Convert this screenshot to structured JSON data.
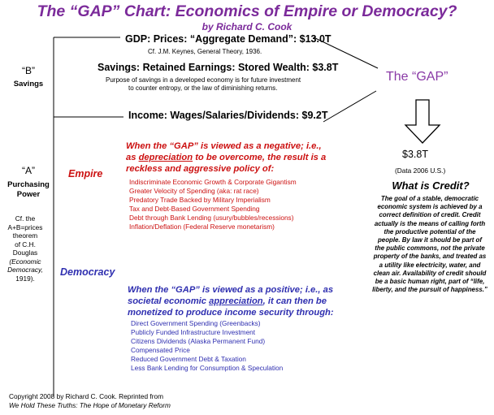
{
  "title": "The “GAP” Chart: Economics of Empire or Democracy?",
  "byline": "by Richard C. Cook",
  "gdp": {
    "line": "GDP: Prices: “Aggregate Demand”: $13.0T",
    "citation": "Cf. J.M. Keynes, General Theory, 1936."
  },
  "savings": {
    "line": "Savings: Retained Earnings: Stored Wealth: $3.8T",
    "note_1": "Purpose of savings in a developed economy is for future investment",
    "note_2": "to counter entropy, or the law of diminishing returns."
  },
  "income": {
    "line": "Income: Wages/Salaries/Dividends: $9.2T"
  },
  "left_labels": {
    "b_symbol": "“B”",
    "b_word": "Savings",
    "a_symbol": "“A”",
    "a_word_1": "Purchasing",
    "a_word_2": "Power",
    "cf_1": "Cf. the",
    "cf_2": "A+B=prices",
    "cf_3": "theorem",
    "cf_4": "of C.H.",
    "cf_5": "Douglas",
    "cf_6": "(Economic",
    "cf_7": "Democracy,",
    "cf_8": "1919)."
  },
  "gap": {
    "label": "The “GAP”",
    "amount": "$3.8T",
    "data_note": "(Data 2006 U.S.)"
  },
  "empire": {
    "label": "Empire",
    "heading_1": "When the “GAP” is viewed as a negative; i.e.,",
    "heading_2_pre": "as ",
    "heading_2_key": "depreciation",
    "heading_2_post": " to be overcome, the result is a",
    "heading_3": "reckless and aggressive policy of:",
    "items": [
      "Indiscriminate Economic Growth & Corporate Gigantism",
      "Greater Velocity of Spending (aka: rat race)",
      "Predatory Trade Backed by Military Imperialism",
      "Tax and Debt-Based Government Spending",
      "Debt through Bank Lending (usury/bubbles/recessions)",
      "Inflation/Deflation (Federal Reserve monetarism)"
    ]
  },
  "democracy": {
    "label": "Democracy",
    "heading_1": "When the “GAP” is viewed as a positive; i.e., as",
    "heading_2_pre": "societal economic ",
    "heading_2_key": "appreciation",
    "heading_2_post": ", it can then be",
    "heading_3": "monetized to produce income security through:",
    "items": [
      "Direct Government Spending (Greenbacks)",
      "Publicly Funded Infrastructure Investment",
      "Citizens Dividends (Alaska Permanent Fund)",
      "Compensated Price",
      "Reduced Government Debt & Taxation",
      "Less Bank Lending for Consumption & Speculation"
    ]
  },
  "credit": {
    "question": "What is Credit?",
    "body": "The goal of a stable, democratic economic system is achieved by a correct definition of credit. Credit actually is the means of calling forth the productive potential of the people. By law it should be part of the public commons, not the private property of the banks, and treated as a utility like electricity, water, and clean air. Availability of credit should be a basic human right, part of “life, liberty, and the pursuit of happiness.”"
  },
  "footer": {
    "copyright": "Copyright 2008 by Richard C. Cook. Reprinted from",
    "source": "We Hold These Truths: The Hope of Monetary Reform"
  },
  "colors": {
    "title": "#7b2a9a",
    "empire": "#cc1111",
    "democracy": "#2f2fb0",
    "gap": "#8a3aa6"
  }
}
